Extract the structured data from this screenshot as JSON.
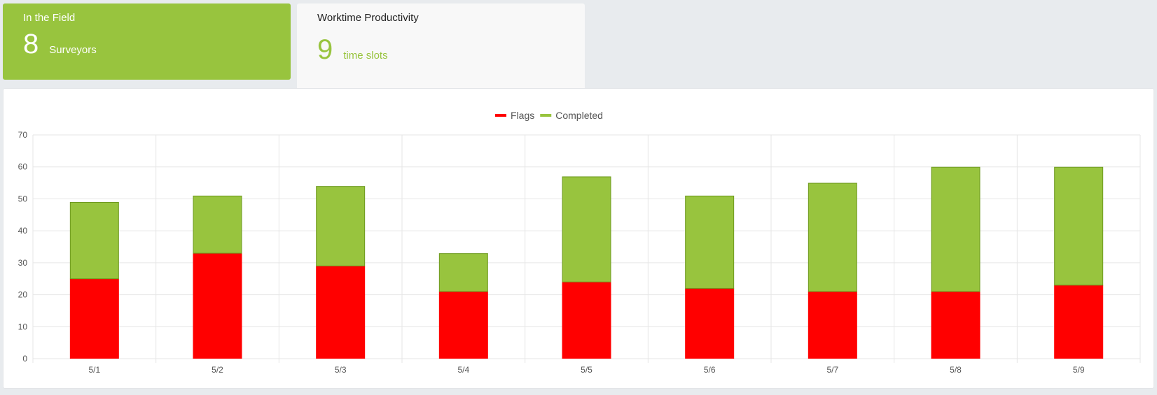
{
  "colors": {
    "accent": "#98c43e",
    "flags": "#ff0000",
    "grid": "#e6e6e6",
    "completed_border": "#6e9a20"
  },
  "field_card": {
    "title": "In the Field",
    "value": "8",
    "unit": "Surveyors"
  },
  "productivity_card": {
    "title": "Worktime Productivity",
    "value": "9",
    "unit": "time slots"
  },
  "chart_data": {
    "type": "bar",
    "stacked": true,
    "categories": [
      "5/1",
      "5/2",
      "5/3",
      "5/4",
      "5/5",
      "5/6",
      "5/7",
      "5/8",
      "5/9"
    ],
    "series": [
      {
        "name": "Flags",
        "values": [
          25,
          33,
          29,
          21,
          24,
          22,
          21,
          21,
          23
        ]
      },
      {
        "name": "Completed",
        "values": [
          24,
          18,
          25,
          12,
          33,
          29,
          34,
          39,
          37
        ]
      }
    ],
    "ylim": [
      0,
      70
    ],
    "yticks": [
      0,
      10,
      20,
      30,
      40,
      50,
      60,
      70
    ],
    "title": "",
    "xlabel": "",
    "ylabel": "",
    "legend_position": "top-center",
    "grid": true
  }
}
